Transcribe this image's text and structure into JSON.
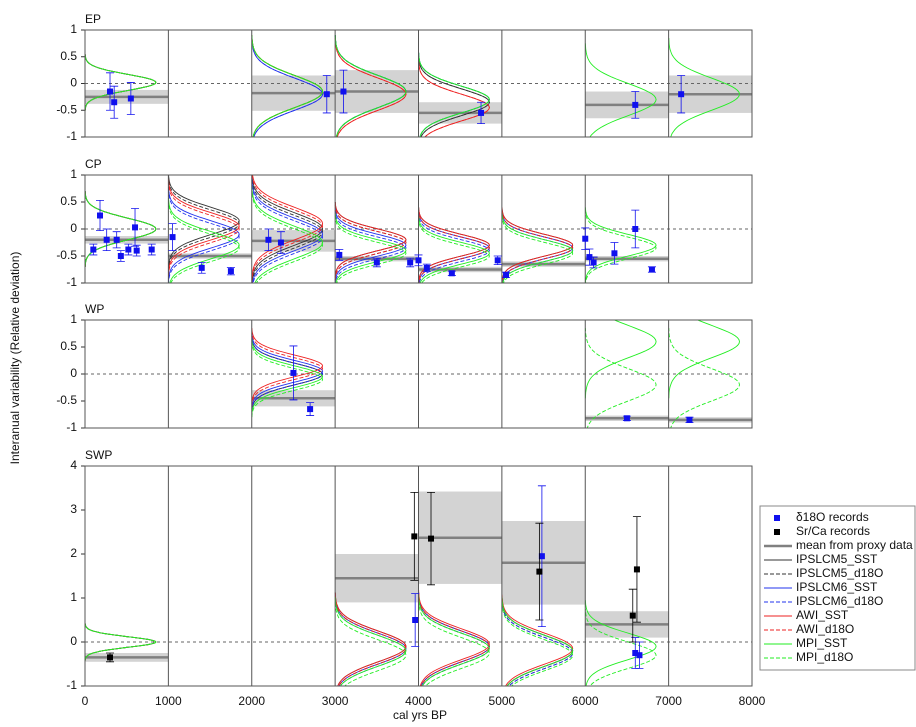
{
  "chart_data": {
    "type": "panels",
    "xlabel": "cal yrs BP",
    "ylabel": "Interanual variability (Relative deviation)",
    "xlim": [
      0,
      8000
    ],
    "xticks": [
      0,
      1000,
      2000,
      3000,
      4000,
      5000,
      6000,
      7000,
      8000
    ],
    "proxy_legend": [
      {
        "name": "δ18O records",
        "color": "#1010ee"
      },
      {
        "name": "Sr/Ca records",
        "color": "#000000"
      },
      {
        "name": "mean from proxy data",
        "color": "#808080"
      }
    ],
    "models": [
      {
        "name": "IPSLCM5_SST",
        "color": "#333333",
        "dashed": false
      },
      {
        "name": "IPSLCM5_d18O",
        "color": "#333333",
        "dashed": true
      },
      {
        "name": "IPSLCM6_SST",
        "color": "#2233ee",
        "dashed": false
      },
      {
        "name": "IPSLCM6_d18O",
        "color": "#2233ee",
        "dashed": true
      },
      {
        "name": "AWI_SST",
        "color": "#ee2222",
        "dashed": false
      },
      {
        "name": "AWI_d18O",
        "color": "#ee2222",
        "dashed": true
      },
      {
        "name": "MPI_SST",
        "color": "#22ee22",
        "dashed": false
      },
      {
        "name": "MPI_d18O",
        "color": "#22ee22",
        "dashed": true
      }
    ],
    "panels": [
      {
        "title": "EP",
        "ylim": [
          -1,
          1
        ],
        "yticks": [
          -1,
          -0.5,
          0,
          0.5,
          1
        ],
        "d18O": {
          "x": [
            300,
            350,
            550,
            2900,
            3100,
            4750,
            6600,
            7150
          ],
          "y": [
            -0.15,
            -0.35,
            -0.28,
            -0.2,
            -0.15,
            -0.55,
            -0.4,
            -0.2
          ],
          "err": [
            0.35,
            0.3,
            0.3,
            0.35,
            0.4,
            0.2,
            0.25,
            0.35
          ]
        },
        "srca": {
          "x": [],
          "y": [],
          "err": []
        },
        "means": [
          {
            "x0": 0,
            "x1": 1000,
            "value": -0.25,
            "band": 0.13
          },
          {
            "x0": 2000,
            "x1": 3000,
            "value": -0.18,
            "band": 0.33
          },
          {
            "x0": 3000,
            "x1": 4000,
            "value": -0.15,
            "band": 0.4
          },
          {
            "x0": 4000,
            "x1": 5000,
            "value": -0.55,
            "band": 0.2
          },
          {
            "x0": 6000,
            "x1": 7000,
            "value": -0.4,
            "band": 0.25
          },
          {
            "x0": 7000,
            "x1": 8000,
            "value": -0.2,
            "band": 0.35
          }
        ],
        "curves": [
          {
            "x0": 0,
            "modes": [
              0.02,
              0.02,
              0.02,
              0.02,
              0.02,
              0.02,
              0.02,
              0.02
            ],
            "sds": [
              0.15,
              0.15,
              0.15,
              0.15,
              0.15,
              0.15,
              0.15,
              0.15
            ]
          },
          {
            "x0": 2000,
            "modes": [
              -0.15,
              -0.15,
              -0.2,
              -0.2,
              -0.15,
              -0.15,
              -0.15,
              -0.15
            ],
            "sds": [
              0.3,
              0.3,
              0.3,
              0.3,
              0.3,
              0.3,
              0.3,
              0.3
            ]
          },
          {
            "x0": 3000,
            "modes": [
              -0.15,
              -0.15,
              -0.15,
              -0.15,
              -0.2,
              -0.2,
              -0.15,
              -0.15
            ],
            "sds": [
              0.3,
              0.3,
              0.3,
              0.3,
              0.3,
              0.3,
              0.3,
              0.3
            ]
          },
          {
            "x0": 4000,
            "modes": [
              -0.35,
              -0.35,
              -0.3,
              -0.3,
              -0.45,
              -0.45,
              -0.3,
              -0.3
            ],
            "sds": [
              0.25,
              0.25,
              0.25,
              0.25,
              0.25,
              0.25,
              0.25,
              0.25
            ]
          },
          {
            "x0": 6000,
            "modes": [
              null,
              null,
              null,
              null,
              null,
              null,
              -0.3,
              null
            ],
            "sds": [
              null,
              null,
              null,
              null,
              null,
              null,
              0.3,
              null
            ]
          },
          {
            "x0": 7000,
            "modes": [
              null,
              null,
              null,
              null,
              null,
              null,
              -0.2,
              null
            ],
            "sds": [
              null,
              null,
              null,
              null,
              null,
              null,
              0.3,
              null
            ]
          }
        ]
      },
      {
        "title": "CP",
        "ylim": [
          -1,
          1
        ],
        "yticks": [
          -1,
          -0.5,
          0,
          0.5,
          1
        ],
        "d18O": {
          "x": [
            100,
            180,
            260,
            380,
            430,
            520,
            600,
            620,
            800,
            1050,
            1400,
            1750,
            2200,
            2350,
            3050,
            3500,
            3900,
            4000,
            4100,
            4400,
            4950,
            5050,
            6000,
            6050,
            6100,
            6350,
            6600,
            6800
          ],
          "y": [
            -0.38,
            0.25,
            -0.2,
            -0.2,
            -0.5,
            -0.38,
            0.03,
            -0.4,
            -0.38,
            -0.15,
            -0.72,
            -0.78,
            -0.2,
            -0.25,
            -0.48,
            -0.62,
            -0.62,
            -0.58,
            -0.72,
            -0.82,
            -0.58,
            -0.85,
            -0.18,
            -0.52,
            -0.62,
            -0.45,
            0.0,
            -0.75
          ],
          "err": [
            0.1,
            0.28,
            0.2,
            0.15,
            0.1,
            0.1,
            0.35,
            0.1,
            0.1,
            0.25,
            0.1,
            0.07,
            0.2,
            0.2,
            0.1,
            0.08,
            0.08,
            0.1,
            0.07,
            0.04,
            0.08,
            0.05,
            0.2,
            0.15,
            0.1,
            0.2,
            0.35,
            0.05
          ]
        },
        "srca": {
          "x": [],
          "y": [],
          "err": []
        },
        "means": [
          {
            "x0": 0,
            "x1": 1000,
            "value": -0.2,
            "band": 0.07
          },
          {
            "x0": 1000,
            "x1": 2000,
            "value": -0.5,
            "band": 0.05
          },
          {
            "x0": 2000,
            "x1": 3000,
            "value": -0.22,
            "band": 0.2
          },
          {
            "x0": 3000,
            "x1": 4000,
            "value": -0.55,
            "band": 0.05
          },
          {
            "x0": 4000,
            "x1": 5000,
            "value": -0.75,
            "band": 0.05
          },
          {
            "x0": 5000,
            "x1": 6000,
            "value": -0.65,
            "band": 0.05
          },
          {
            "x0": 6000,
            "x1": 7000,
            "value": -0.55,
            "band": 0.05
          }
        ],
        "curves": [
          {
            "x0": 0,
            "modes": [
              0,
              0,
              0,
              0,
              0,
              0,
              0,
              0
            ],
            "sds": [
              0.2,
              0.2,
              0.2,
              0.2,
              0.2,
              0.2,
              0.2,
              0.2
            ]
          },
          {
            "x0": 1000,
            "modes": [
              0.15,
              0.1,
              -0.1,
              -0.15,
              0.05,
              0,
              -0.3,
              -0.35
            ],
            "sds": [
              0.25,
              0.25,
              0.25,
              0.25,
              0.25,
              0.25,
              0.25,
              0.25
            ]
          },
          {
            "x0": 2000,
            "modes": [
              0,
              -0.05,
              -0.1,
              -0.15,
              0.1,
              0.05,
              -0.25,
              -0.3
            ],
            "sds": [
              0.3,
              0.3,
              0.3,
              0.3,
              0.3,
              0.3,
              0.3,
              0.3
            ]
          },
          {
            "x0": 3000,
            "modes": [
              -0.2,
              -0.25,
              -0.3,
              -0.35,
              -0.2,
              -0.25,
              -0.4,
              -0.45
            ],
            "sds": [
              0.2,
              0.2,
              0.2,
              0.2,
              0.2,
              0.2,
              0.2,
              0.2
            ]
          },
          {
            "x0": 4000,
            "modes": [
              -0.3,
              -0.35,
              -0.35,
              -0.4,
              -0.3,
              -0.35,
              -0.45,
              -0.5
            ],
            "sds": [
              0.2,
              0.2,
              0.2,
              0.2,
              0.2,
              0.2,
              0.2,
              0.2
            ]
          },
          {
            "x0": 5000,
            "modes": [
              -0.3,
              -0.35,
              -0.35,
              -0.4,
              -0.3,
              -0.35,
              -0.4,
              -0.45
            ],
            "sds": [
              0.2,
              0.2,
              0.2,
              0.2,
              0.2,
              0.2,
              0.2,
              0.2
            ]
          },
          {
            "x0": 6000,
            "modes": [
              null,
              null,
              null,
              null,
              null,
              null,
              -0.3,
              -0.35
            ],
            "sds": [
              null,
              null,
              null,
              null,
              null,
              null,
              0.2,
              0.2
            ]
          }
        ]
      },
      {
        "title": "WP",
        "ylim": [
          -1,
          1
        ],
        "yticks": [
          -1,
          -0.5,
          0,
          0.5,
          1
        ],
        "d18O": {
          "x": [
            2500,
            2700,
            6500,
            7250
          ],
          "y": [
            0.02,
            -0.65,
            -0.82,
            -0.85
          ],
          "err": [
            0.5,
            0.12,
            0.04,
            0.05
          ]
        },
        "srca": {
          "x": [],
          "y": [],
          "err": []
        },
        "means": [
          {
            "x0": 2000,
            "x1": 3000,
            "value": -0.45,
            "band": 0.15
          },
          {
            "x0": 6000,
            "x1": 7000,
            "value": -0.82,
            "band": 0.05
          },
          {
            "x0": 7000,
            "x1": 8000,
            "value": -0.85,
            "band": 0.05
          }
        ],
        "curves": [
          {
            "x0": 2000,
            "modes": [
              0,
              0,
              0.05,
              0,
              0.15,
              0.1,
              -0.05,
              -0.1
            ],
            "sds": [
              0.2,
              0.2,
              0.2,
              0.2,
              0.2,
              0.2,
              0.2,
              0.2
            ]
          },
          {
            "x0": 6000,
            "modes": [
              null,
              null,
              null,
              null,
              null,
              null,
              0.6,
              -0.2
            ],
            "sds": [
              null,
              null,
              null,
              null,
              null,
              null,
              0.3,
              0.3
            ]
          },
          {
            "x0": 7000,
            "modes": [
              null,
              null,
              null,
              null,
              null,
              null,
              0.6,
              -0.2
            ],
            "sds": [
              null,
              null,
              null,
              null,
              null,
              null,
              0.3,
              0.3
            ]
          }
        ]
      },
      {
        "title": "SWP",
        "ylim": [
          -1,
          4
        ],
        "yticks": [
          -1,
          0,
          1,
          2,
          3,
          4
        ],
        "d18O": {
          "x": [
            3960,
            5480,
            6600,
            6650
          ],
          "y": [
            0.5,
            1.95,
            -0.25,
            -0.3
          ],
          "err": [
            0.6,
            1.6,
            0.35,
            0.3
          ]
        },
        "srca": {
          "x": [
            300,
            3950,
            4150,
            5450,
            6570,
            6620
          ],
          "y": [
            -0.35,
            2.4,
            2.35,
            1.6,
            0.6,
            1.65
          ],
          "err": [
            0.1,
            1.0,
            1.05,
            1.1,
            0.6,
            1.2
          ]
        },
        "means": [
          {
            "x0": 0,
            "x1": 1000,
            "value": -0.35,
            "band": 0.1
          },
          {
            "x0": 3000,
            "x1": 4000,
            "value": 1.45,
            "band": 0.55
          },
          {
            "x0": 4000,
            "x1": 5000,
            "value": 2.37,
            "band": 1.05
          },
          {
            "x0": 5000,
            "x1": 6000,
            "value": 1.8,
            "band": 0.95
          },
          {
            "x0": 6000,
            "x1": 7000,
            "value": 0.4,
            "band": 0.3
          }
        ],
        "curves": [
          {
            "x0": 0,
            "modes": [
              0,
              0,
              0,
              0,
              0,
              0,
              0,
              0
            ],
            "sds": [
              0.12,
              0.12,
              0.12,
              0.12,
              0.12,
              0.12,
              0.12,
              0.12
            ]
          },
          {
            "x0": 3000,
            "modes": [
              -0.1,
              -0.15,
              -0.15,
              -0.2,
              -0.1,
              -0.15,
              -0.2,
              -0.3
            ],
            "sds": [
              0.35,
              0.35,
              0.35,
              0.35,
              0.35,
              0.35,
              0.35,
              0.35
            ]
          },
          {
            "x0": 4000,
            "modes": [
              -0.1,
              -0.15,
              -0.1,
              -0.15,
              -0.05,
              -0.1,
              -0.15,
              -0.25
            ],
            "sds": [
              0.35,
              0.35,
              0.35,
              0.35,
              0.35,
              0.35,
              0.35,
              0.35
            ]
          },
          {
            "x0": 5000,
            "modes": [
              -0.2,
              -0.25,
              -0.2,
              -0.25,
              -0.15,
              -0.2,
              -0.2,
              -0.3
            ],
            "sds": [
              0.35,
              0.35,
              0.35,
              0.35,
              0.35,
              0.35,
              0.35,
              0.35
            ]
          },
          {
            "x0": 6000,
            "modes": [
              null,
              null,
              null,
              null,
              null,
              null,
              -0.1,
              -0.3
            ],
            "sds": [
              null,
              null,
              null,
              null,
              null,
              null,
              0.3,
              0.3
            ]
          }
        ]
      }
    ]
  }
}
